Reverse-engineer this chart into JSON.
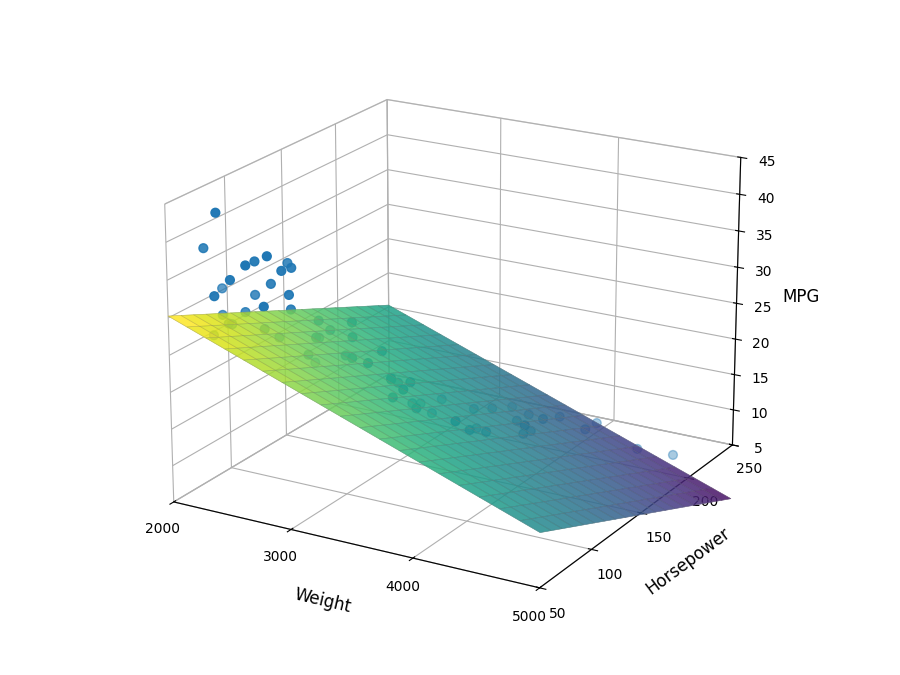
{
  "title": "",
  "xlabel": "Weight",
  "ylabel": "Horsepower",
  "zlabel": "MPG",
  "scatter_color": "#1f77b4",
  "scatter_points": [
    [
      2130,
      75,
      26
    ],
    [
      2650,
      110,
      21
    ],
    [
      2735,
      79,
      33
    ],
    [
      2865,
      91,
      29
    ],
    [
      2595,
      75,
      38
    ],
    [
      2700,
      85,
      36
    ],
    [
      2630,
      68,
      32
    ],
    [
      2545,
      77,
      28
    ],
    [
      2405,
      75,
      30
    ],
    [
      3150,
      90,
      25
    ],
    [
      3090,
      97,
      27
    ],
    [
      3260,
      105,
      25
    ],
    [
      3420,
      97,
      20
    ],
    [
      3525,
      107,
      18
    ],
    [
      3820,
      110,
      17
    ],
    [
      3850,
      120,
      15
    ],
    [
      3900,
      130,
      14
    ],
    [
      4100,
      150,
      13
    ],
    [
      4200,
      150,
      15
    ],
    [
      4215,
      165,
      14
    ],
    [
      4425,
      165,
      13
    ],
    [
      4440,
      175,
      13
    ],
    [
      4735,
      180,
      10
    ],
    [
      4950,
      190,
      9
    ],
    [
      2765,
      92,
      24
    ],
    [
      2810,
      97,
      26
    ],
    [
      2740,
      80,
      31
    ],
    [
      2875,
      100,
      27
    ],
    [
      2870,
      88,
      27
    ],
    [
      3003,
      100,
      24
    ],
    [
      3381,
      100,
      22
    ],
    [
      3300,
      88,
      25
    ],
    [
      3449,
      110,
      21
    ],
    [
      3302,
      115,
      20
    ],
    [
      3288,
      110,
      21
    ],
    [
      3480,
      100,
      21
    ],
    [
      4215,
      130,
      16
    ],
    [
      3820,
      165,
      14
    ],
    [
      3780,
      150,
      15
    ],
    [
      3985,
      150,
      14
    ],
    [
      2482,
      68,
      37
    ],
    [
      2490,
      75,
      37
    ],
    [
      2585,
      79,
      34
    ],
    [
      2620,
      90,
      36
    ],
    [
      2675,
      79,
      36
    ],
    [
      3086,
      97,
      29
    ],
    [
      2220,
      70,
      43
    ],
    [
      2160,
      80,
      32
    ],
    [
      2380,
      65,
      35
    ],
    [
      2295,
      60,
      33
    ],
    [
      2440,
      80,
      32
    ],
    [
      2560,
      88,
      26
    ],
    [
      2210,
      75,
      29
    ],
    [
      2290,
      75,
      28
    ],
    [
      2110,
      70,
      38
    ],
    [
      2260,
      75,
      28
    ],
    [
      4000,
      160,
      14
    ],
    [
      3670,
      145,
      15
    ],
    [
      3355,
      130,
      16
    ],
    [
      3450,
      130,
      15
    ],
    [
      3445,
      140,
      16
    ],
    [
      4080,
      145,
      13
    ],
    [
      3375,
      120,
      17
    ],
    [
      3735,
      140,
      13
    ]
  ],
  "weight_range": [
    2000,
    5000
  ],
  "hp_range": [
    50,
    250
  ],
  "mpg_range": [
    5,
    45
  ],
  "weight_ticks": [
    2000,
    3000,
    4000,
    5000
  ],
  "hp_ticks": [
    50,
    100,
    150,
    200,
    250
  ],
  "mpg_ticks": [
    5,
    10,
    15,
    20,
    25,
    30,
    35,
    40,
    45
  ],
  "regression_coef": [
    46.0,
    -0.006,
    -0.075
  ],
  "surface_alpha": 0.85,
  "elev": 20,
  "azim": -60
}
